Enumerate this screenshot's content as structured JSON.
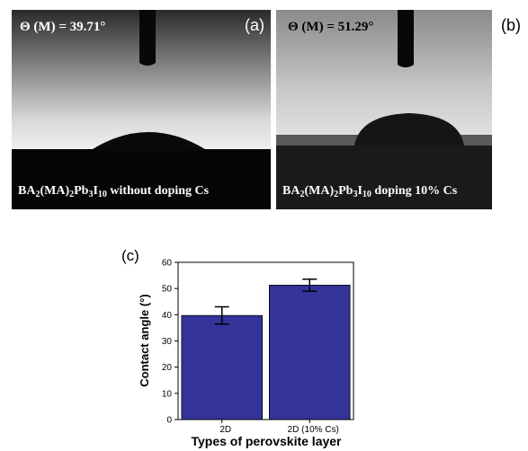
{
  "photos": [
    {
      "label": "(a)",
      "angle_text": "Θ (M) = 39.71°",
      "caption": [
        {
          "text": "BA",
          "sub": false
        },
        {
          "text": "2",
          "sub": true
        },
        {
          "text": "(MA)",
          "sub": false
        },
        {
          "text": "2",
          "sub": true
        },
        {
          "text": "Pb",
          "sub": false
        },
        {
          "text": "3",
          "sub": true
        },
        {
          "text": "I",
          "sub": false
        },
        {
          "text": "10",
          "sub": true
        },
        {
          "text": " without doping Cs",
          "sub": false
        }
      ]
    },
    {
      "label": "(b)",
      "angle_text": "Θ (M) = 51.29°",
      "caption": [
        {
          "text": "BA",
          "sub": false
        },
        {
          "text": "2",
          "sub": true
        },
        {
          "text": "(MA)",
          "sub": false
        },
        {
          "text": "2",
          "sub": true
        },
        {
          "text": "Pb",
          "sub": false
        },
        {
          "text": "3",
          "sub": true
        },
        {
          "text": "I",
          "sub": false
        },
        {
          "text": "10",
          "sub": true
        },
        {
          "text": " doping 10% Cs",
          "sub": false
        }
      ]
    }
  ],
  "chart_data": {
    "type": "bar",
    "panel_label": "(c)",
    "categories": [
      "2D",
      "2D (10% Cs)"
    ],
    "values": [
      39.71,
      51.29
    ],
    "errors": [
      3.3,
      2.3
    ],
    "color": "#33339a",
    "ylim": [
      0,
      60
    ],
    "yticks": [
      0,
      10,
      20,
      30,
      40,
      50,
      60
    ],
    "y_label": "Contact angle (°)",
    "x_label": "Types of perovskite layer"
  }
}
